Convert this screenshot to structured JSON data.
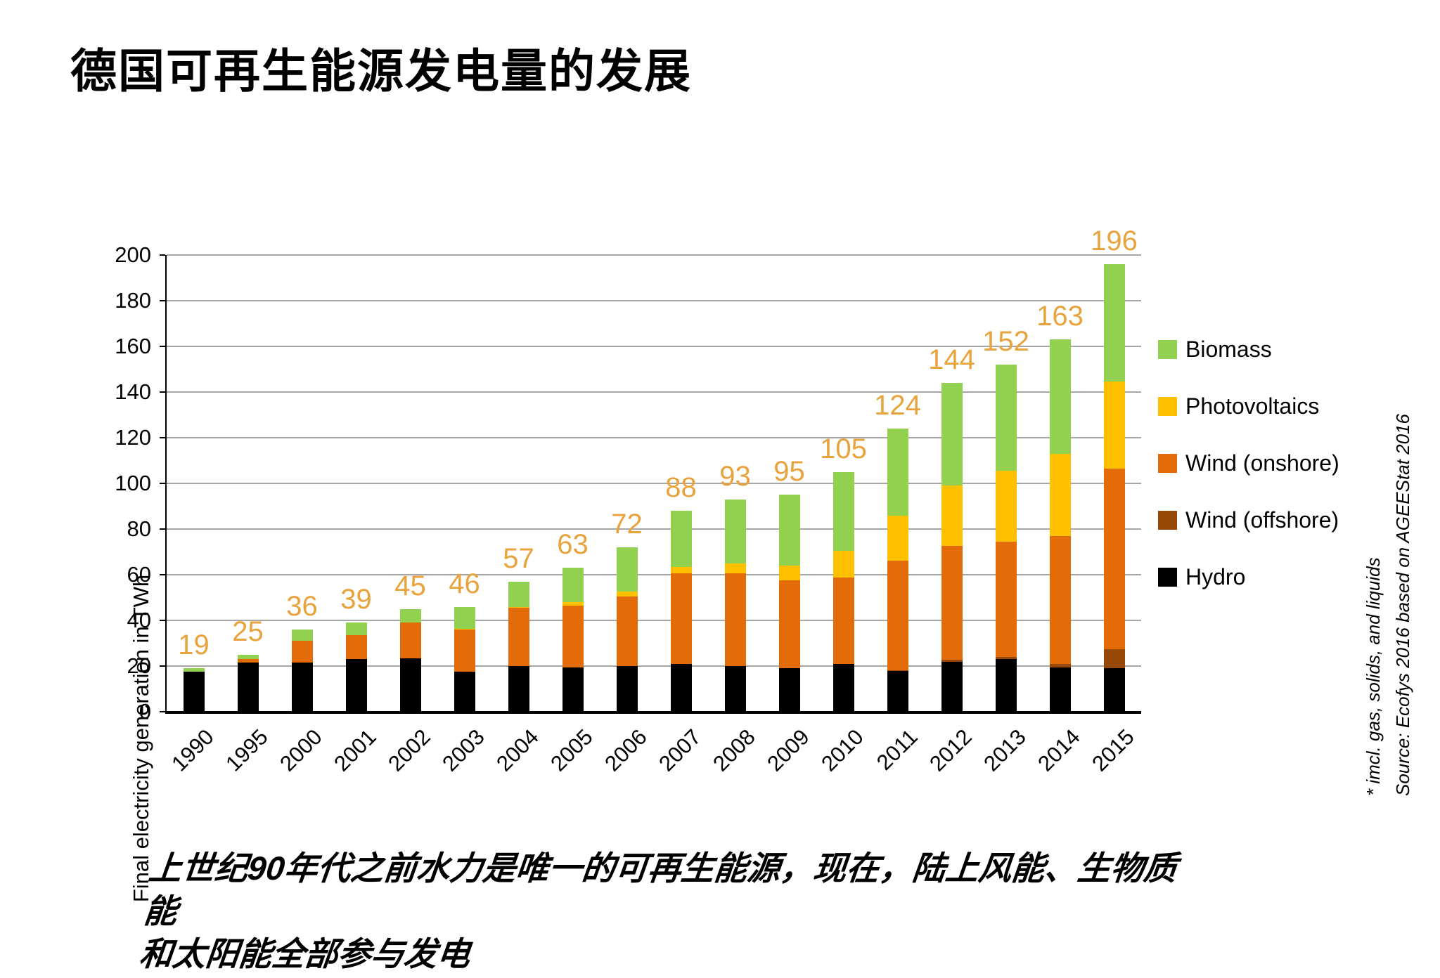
{
  "title": "德国可再生能源发电量的发展",
  "caption": {
    "line1": "上世纪90年代之前水力是唯一的可再生能源，现在，陆上风能、生物质能",
    "line2": "和太阳能全部参与发电"
  },
  "source_note": {
    "footnote": "* imcl. gas, solids, and liquids",
    "credit": "Source: Ecofys 2016 based on AGEEStat 2016"
  },
  "chart_data": {
    "type": "bar",
    "stacked": true,
    "ylabel": "Final electricity generation in TWh",
    "ylim": [
      0,
      200
    ],
    "ytick_step": 20,
    "grid": true,
    "legend_position": "right",
    "categories": [
      "1990",
      "1995",
      "2000",
      "2001",
      "2002",
      "2003",
      "2004",
      "2005",
      "2006",
      "2007",
      "2008",
      "2009",
      "2010",
      "2011",
      "2012",
      "2013",
      "2014",
      "2015"
    ],
    "totals": [
      19,
      25,
      36,
      39,
      45,
      46,
      57,
      63,
      72,
      88,
      93,
      95,
      105,
      124,
      144,
      152,
      163,
      196
    ],
    "series": [
      {
        "name": "Hydro",
        "color": "#000000",
        "values": [
          17.5,
          21.5,
          21.5,
          23,
          23.5,
          17.5,
          20,
          19.5,
          20,
          21,
          20,
          19,
          21,
          17.7,
          22,
          23,
          19.5,
          19
        ]
      },
      {
        "name": "Wind (offshore)",
        "color": "#974806",
        "values": [
          0,
          0,
          0,
          0,
          0,
          0,
          0,
          0,
          0,
          0,
          0,
          0,
          0,
          0.6,
          0.7,
          0.9,
          1.4,
          8.5
        ]
      },
      {
        "name": "Wind (onshore)",
        "color": "#e36c09",
        "values": [
          0,
          1.5,
          9.5,
          10.5,
          15.5,
          18.5,
          25.5,
          27,
          30.5,
          39.5,
          40.5,
          38.5,
          37.8,
          48,
          49.8,
          50.6,
          56.1,
          79
        ]
      },
      {
        "name": "Photovoltaics",
        "color": "#ffc000",
        "values": [
          0,
          0,
          0,
          0,
          0,
          0.3,
          0.5,
          1.5,
          2,
          3,
          4.5,
          6.5,
          11.7,
          19.7,
          26.5,
          31,
          36,
          38
        ]
      },
      {
        "name": "Biomass",
        "color": "#92d050",
        "values": [
          1.5,
          2,
          5,
          5.5,
          6,
          9.7,
          11,
          15,
          19.5,
          24.5,
          28,
          31,
          34.5,
          38,
          45,
          46.5,
          50,
          51.5
        ]
      }
    ],
    "legend_order": [
      "Biomass",
      "Photovoltaics",
      "Wind (onshore)",
      "Wind (offshore)",
      "Hydro"
    ],
    "total_label_color": "#e8a33d",
    "gridline_color": "#a6a6a6"
  }
}
